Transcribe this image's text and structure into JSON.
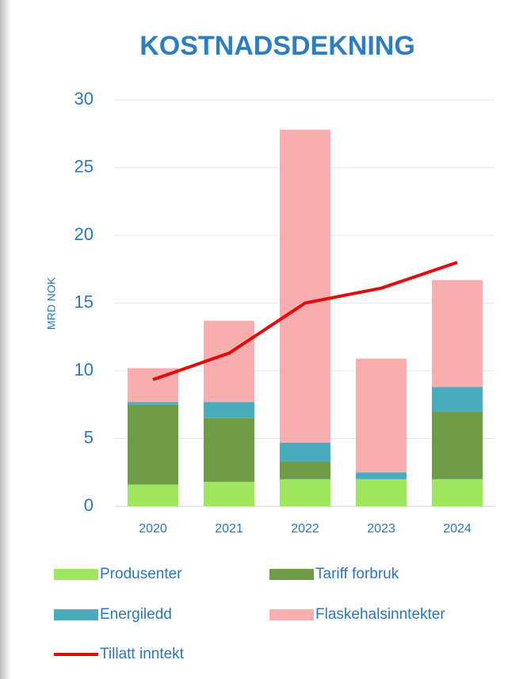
{
  "chart_data": {
    "type": "bar",
    "stacked": true,
    "title": "KOSTNADSDEKNING",
    "y_label": "MRD NOK",
    "categories": [
      "2020",
      "2021",
      "2022",
      "2023",
      "2024"
    ],
    "series": [
      {
        "name": "Produsenter",
        "color": "#9de65e",
        "values": [
          1.6,
          1.8,
          2.0,
          2.0,
          2.0
        ]
      },
      {
        "name": "Tariff forbruk",
        "color": "#6f9a46",
        "values": [
          5.9,
          4.7,
          1.3,
          0,
          5.0
        ]
      },
      {
        "name": "Energiledd",
        "color": "#4aabbd",
        "values": [
          0.2,
          1.2,
          1.4,
          0.5,
          1.8
        ]
      },
      {
        "name": "Flaskehalsinntekter",
        "color": "#f8aeae",
        "values": [
          2.5,
          6.0,
          23.1,
          8.4,
          7.9
        ]
      },
      {
        "name": "Tillatt inntekt",
        "color": "#e30b0b",
        "type": "line",
        "values": [
          9.35,
          11.3,
          15.0,
          16.1,
          18.0
        ]
      }
    ],
    "ylim": [
      0,
      30
    ],
    "yticks": [
      0,
      5,
      10,
      15,
      20,
      25,
      30
    ],
    "grid": true
  }
}
